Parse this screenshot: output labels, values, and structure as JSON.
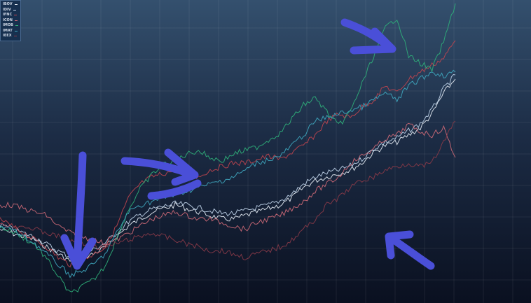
{
  "chart_data": {
    "type": "line",
    "title": "",
    "xlabel": "",
    "ylabel": "",
    "grid": true,
    "legend_placement": "top-left",
    "series": [
      {
        "name": "IBOV",
        "color": "#e8eef6",
        "values": [
          105,
          100,
          95,
          90,
          80,
          70,
          60,
          65,
          70,
          80,
          95,
          110,
          120,
          130,
          135,
          140,
          135,
          130,
          125,
          120,
          120,
          125,
          130,
          135,
          140,
          150,
          165,
          175,
          180,
          185,
          190,
          200,
          215,
          225,
          230,
          240,
          250,
          270,
          300,
          320
        ]
      },
      {
        "name": "IDIV",
        "color": "#c0d4ea",
        "values": [
          112,
          106,
          100,
          94,
          84,
          74,
          66,
          70,
          76,
          86,
          100,
          116,
          126,
          134,
          138,
          142,
          140,
          136,
          132,
          128,
          128,
          132,
          136,
          140,
          146,
          156,
          170,
          180,
          186,
          190,
          196,
          206,
          220,
          230,
          236,
          246,
          256,
          276,
          306,
          326
        ]
      },
      {
        "name": "IFNC",
        "color": "#c0454f",
        "values": [
          120,
          110,
          100,
          90,
          80,
          65,
          55,
          60,
          70,
          80,
          110,
          150,
          170,
          180,
          185,
          190,
          185,
          180,
          190,
          195,
          200,
          200,
          205,
          210,
          205,
          215,
          225,
          240,
          260,
          270,
          265,
          280,
          290,
          310,
          300,
          320,
          330,
          340,
          350,
          375
        ]
      },
      {
        "name": "ICON",
        "color": "#d06a78",
        "values": [
          140,
          140,
          135,
          130,
          125,
          110,
          100,
          95,
          90,
          85,
          90,
          100,
          110,
          120,
          125,
          130,
          125,
          120,
          120,
          115,
          110,
          105,
          115,
          120,
          125,
          135,
          145,
          160,
          170,
          180,
          200,
          210,
          220,
          235,
          240,
          255,
          245,
          240,
          250,
          208
        ]
      },
      {
        "name": "IMOB",
        "color": "#2fb07a",
        "values": [
          108,
          103,
          93,
          83,
          63,
          38,
          13,
          23,
          33,
          53,
          93,
          133,
          163,
          183,
          198,
          203,
          213,
          218,
          208,
          203,
          213,
          218,
          223,
          233,
          243,
          263,
          283,
          293,
          273,
          253,
          273,
          313,
          353,
          393,
          408,
          353,
          343,
          333,
          373,
          428
        ]
      },
      {
        "name": "IMAT",
        "color": "#3fa8c0",
        "values": [
          110,
          105,
          95,
          85,
          70,
          55,
          40,
          45,
          55,
          70,
          100,
          130,
          140,
          145,
          150,
          155,
          160,
          165,
          170,
          175,
          180,
          190,
          200,
          205,
          210,
          225,
          240,
          260,
          265,
          270,
          275,
          280,
          290,
          300,
          290,
          310,
          320,
          330,
          325,
          330
        ]
      },
      {
        "name": "IEEX",
        "color": "#8a3a48",
        "values": [
          115,
          110,
          110,
          105,
          100,
          95,
          90,
          85,
          80,
          80,
          85,
          90,
          95,
          100,
          95,
          90,
          85,
          80,
          75,
          75,
          70,
          65,
          70,
          75,
          80,
          90,
          105,
          120,
          140,
          150,
          165,
          175,
          180,
          190,
          195,
          200,
          195,
          200,
          230,
          260
        ]
      }
    ],
    "annotations": {
      "arrow_color": "#4a4fd8",
      "arrows": [
        "down",
        "right",
        "right",
        "up-right",
        "up-left"
      ]
    }
  }
}
